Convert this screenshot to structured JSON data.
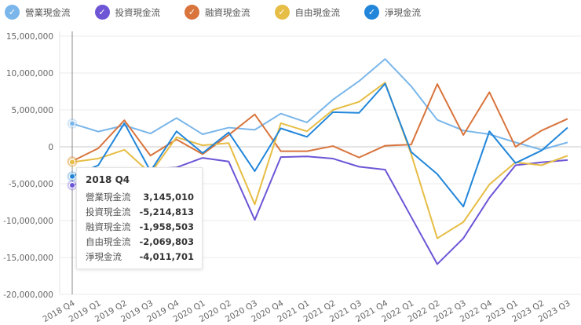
{
  "chart_data": {
    "type": "line",
    "categories": [
      "2018 Q4",
      "2019 Q1",
      "2019 Q2",
      "2019 Q3",
      "2019 Q4",
      "2020 Q1",
      "2020 Q2",
      "2020 Q3",
      "2020 Q4",
      "2021 Q1",
      "2021 Q2",
      "2021 Q3",
      "2021 Q4",
      "2022 Q1",
      "2022 Q2",
      "2022 Q3",
      "2022 Q4",
      "2023 Q1",
      "2023 Q2",
      "2023 Q3"
    ],
    "ylim": [
      -20000000,
      15000000
    ],
    "yticks": [
      15000000,
      10000000,
      5000000,
      0,
      -5000000,
      -10000000,
      -15000000,
      -20000000
    ],
    "ytick_labels": [
      "15,000,000",
      "10,000,000",
      "5,000,000",
      "0",
      "-5,000,000",
      "-10,000,000",
      "-15,000,000",
      "-20,000,000"
    ],
    "grid": true,
    "legend_position": "top",
    "series": [
      {
        "name": "營業現金流",
        "color": "#7ab6ea",
        "values": [
          3145010,
          2060000,
          2900000,
          1800000,
          3900000,
          1700000,
          2600000,
          2300000,
          4500000,
          3300000,
          6400000,
          8900000,
          11900000,
          8200000,
          3650000,
          2200000,
          1700000,
          600000,
          -400000,
          600000
        ]
      },
      {
        "name": "投資現金流",
        "color": "#6d55d6",
        "values": [
          -5214813,
          -4300000,
          -3600000,
          -3000000,
          -2800000,
          -1500000,
          -2000000,
          -9900000,
          -1400000,
          -1300000,
          -1600000,
          -2700000,
          -3100000,
          -9500000,
          -15900000,
          -12400000,
          -6900000,
          -2500000,
          -2100000,
          -1800000
        ]
      },
      {
        "name": "融資現金流",
        "color": "#d8743c",
        "values": [
          -1958503,
          -200000,
          3600000,
          -1200000,
          1000000,
          -1000000,
          1600000,
          4400000,
          -600000,
          -600000,
          100000,
          -1450000,
          150000,
          300000,
          8500000,
          1600000,
          7400000,
          0,
          2200000,
          3800000
        ]
      },
      {
        "name": "自由現金流",
        "color": "#e6bd45",
        "values": [
          -2069803,
          -1600000,
          -400000,
          -3600000,
          1300000,
          200000,
          500000,
          -7800000,
          3200000,
          2100000,
          5000000,
          6100000,
          8700000,
          -1000000,
          -12400000,
          -10200000,
          -5100000,
          -2100000,
          -2500000,
          -1200000
        ]
      },
      {
        "name": "淨現金流",
        "color": "#2186da",
        "values": [
          -4011701,
          -2500000,
          3200000,
          -3300000,
          2100000,
          -850000,
          1950000,
          -3300000,
          2500000,
          1350000,
          4700000,
          4600000,
          8550000,
          -700000,
          -3700000,
          -8100000,
          2100000,
          -2200000,
          -500000,
          2600000
        ]
      }
    ]
  },
  "tooltip": {
    "title": "2018 Q4",
    "rows": [
      {
        "label": "營業現金流",
        "value": "3,145,010"
      },
      {
        "label": "投資現金流",
        "value": "-5,214,813"
      },
      {
        "label": "融資現金流",
        "value": "-1,958,503"
      },
      {
        "label": "自由現金流",
        "value": "-2,069,803"
      },
      {
        "label": "淨現金流",
        "value": "-4,011,701"
      }
    ]
  },
  "legend_check_icon": "check-icon"
}
